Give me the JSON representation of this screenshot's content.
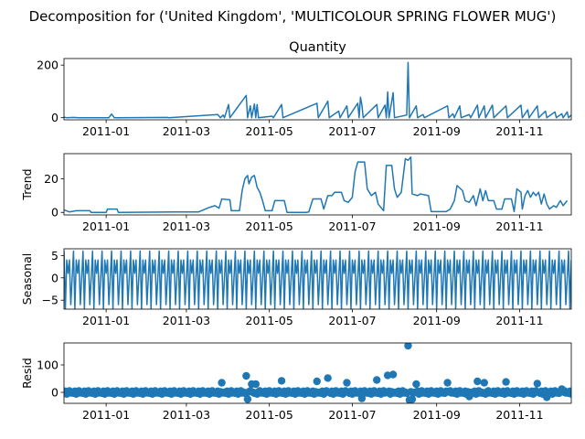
{
  "figure": {
    "suptitle": "Decomposition for ('United Kingdom', 'MULTICOLOUR SPRING FLOWER MUG')",
    "line_color": "#1f77b4"
  },
  "chart_data": [
    {
      "type": "line",
      "title": "Quantity",
      "ylabel": "",
      "xlim": [
        "2010-12-01",
        "2011-12-09"
      ],
      "ylim": [
        -8,
        225
      ],
      "yticks": [
        0,
        200
      ],
      "xticks": [
        "2011-01",
        "2011-03",
        "2011-05",
        "2011-07",
        "2011-09",
        "2011-11"
      ],
      "series": [
        {
          "points": [
            [
              "2010-12-01",
              2
            ],
            [
              "2010-12-03",
              0
            ],
            [
              "2010-12-08",
              1
            ],
            [
              "2010-12-12",
              0
            ],
            [
              "2011-01-03",
              0
            ],
            [
              "2011-01-05",
              14
            ],
            [
              "2011-01-07",
              0
            ],
            [
              "2011-02-15",
              1
            ],
            [
              "2011-02-16",
              0
            ],
            [
              "2011-03-24",
              12
            ],
            [
              "2011-03-26",
              0
            ],
            [
              "2011-03-28",
              10
            ],
            [
              "2011-03-29",
              0
            ],
            [
              "2011-04-01",
              50
            ],
            [
              "2011-04-02",
              0
            ],
            [
              "2011-04-14",
              85
            ],
            [
              "2011-04-15",
              0
            ],
            [
              "2011-04-17",
              45
            ],
            [
              "2011-04-18",
              0
            ],
            [
              "2011-04-20",
              52
            ],
            [
              "2011-04-21",
              0
            ],
            [
              "2011-04-22",
              50
            ],
            [
              "2011-04-23",
              0
            ],
            [
              "2011-05-03",
              6
            ],
            [
              "2011-05-04",
              0
            ],
            [
              "2011-05-10",
              50
            ],
            [
              "2011-05-11",
              0
            ],
            [
              "2011-06-05",
              55
            ],
            [
              "2011-06-06",
              0
            ],
            [
              "2011-06-13",
              63
            ],
            [
              "2011-06-14",
              0
            ],
            [
              "2011-06-21",
              25
            ],
            [
              "2011-06-22",
              0
            ],
            [
              "2011-06-27",
              45
            ],
            [
              "2011-06-28",
              0
            ],
            [
              "2011-07-05",
              55
            ],
            [
              "2011-07-06",
              0
            ],
            [
              "2011-07-07",
              78
            ],
            [
              "2011-07-08",
              50
            ],
            [
              "2011-07-09",
              0
            ],
            [
              "2011-07-19",
              50
            ],
            [
              "2011-07-20",
              0
            ],
            [
              "2011-07-25",
              48
            ],
            [
              "2011-07-26",
              0
            ],
            [
              "2011-07-27",
              98
            ],
            [
              "2011-07-28",
              0
            ],
            [
              "2011-07-31",
              95
            ],
            [
              "2011-08-01",
              0
            ],
            [
              "2011-08-10",
              10
            ],
            [
              "2011-08-11",
              210
            ],
            [
              "2011-08-12",
              0
            ],
            [
              "2011-08-17",
              45
            ],
            [
              "2011-08-18",
              0
            ],
            [
              "2011-08-22",
              12
            ],
            [
              "2011-08-23",
              0
            ],
            [
              "2011-09-09",
              45
            ],
            [
              "2011-09-10",
              0
            ],
            [
              "2011-09-13",
              15
            ],
            [
              "2011-09-14",
              0
            ],
            [
              "2011-09-18",
              45
            ],
            [
              "2011-09-19",
              0
            ],
            [
              "2011-09-25",
              12
            ],
            [
              "2011-09-26",
              0
            ],
            [
              "2011-10-01",
              48
            ],
            [
              "2011-10-02",
              0
            ],
            [
              "2011-10-06",
              45
            ],
            [
              "2011-10-07",
              0
            ],
            [
              "2011-10-12",
              48
            ],
            [
              "2011-10-13",
              0
            ],
            [
              "2011-10-22",
              45
            ],
            [
              "2011-10-23",
              0
            ],
            [
              "2011-11-02",
              48
            ],
            [
              "2011-11-03",
              0
            ],
            [
              "2011-11-07",
              30
            ],
            [
              "2011-11-08",
              0
            ],
            [
              "2011-11-14",
              45
            ],
            [
              "2011-11-15",
              0
            ],
            [
              "2011-11-20",
              25
            ],
            [
              "2011-11-21",
              0
            ],
            [
              "2011-11-27",
              22
            ],
            [
              "2011-11-28",
              0
            ],
            [
              "2011-12-02",
              15
            ],
            [
              "2011-12-03",
              0
            ],
            [
              "2011-12-06",
              22
            ],
            [
              "2011-12-07",
              0
            ],
            [
              "2011-12-09",
              10
            ]
          ]
        }
      ]
    },
    {
      "type": "line",
      "title": "",
      "ylabel": "Trend",
      "xlim": [
        "2010-12-01",
        "2011-12-09"
      ],
      "ylim": [
        -1.5,
        35
      ],
      "yticks": [
        0,
        20
      ],
      "xticks": [
        "2011-01",
        "2011-03",
        "2011-05",
        "2011-07",
        "2011-09",
        "2011-11"
      ],
      "series": [
        {
          "points": [
            [
              "2010-12-01",
              1.5
            ],
            [
              "2010-12-05",
              0.3
            ],
            [
              "2010-12-10",
              1
            ],
            [
              "2010-12-20",
              1
            ],
            [
              "2010-12-21",
              0
            ],
            [
              "2011-01-01",
              0
            ],
            [
              "2011-01-02",
              2
            ],
            [
              "2011-01-09",
              2
            ],
            [
              "2011-01-10",
              0
            ],
            [
              "2011-02-20",
              0.3
            ],
            [
              "2011-03-10",
              0.3
            ],
            [
              "2011-03-18",
              3
            ],
            [
              "2011-03-22",
              4
            ],
            [
              "2011-03-25",
              2.5
            ],
            [
              "2011-03-27",
              8
            ],
            [
              "2011-04-02",
              7.5
            ],
            [
              "2011-04-03",
              1
            ],
            [
              "2011-04-09",
              1
            ],
            [
              "2011-04-11",
              13
            ],
            [
              "2011-04-13",
              20
            ],
            [
              "2011-04-15",
              22
            ],
            [
              "2011-04-16",
              17
            ],
            [
              "2011-04-18",
              21
            ],
            [
              "2011-04-20",
              22
            ],
            [
              "2011-04-22",
              15
            ],
            [
              "2011-04-24",
              12
            ],
            [
              "2011-04-26",
              7
            ],
            [
              "2011-04-28",
              1
            ],
            [
              "2011-05-03",
              1
            ],
            [
              "2011-05-05",
              7
            ],
            [
              "2011-05-12",
              7
            ],
            [
              "2011-05-14",
              0
            ],
            [
              "2011-05-28",
              0
            ],
            [
              "2011-05-30",
              0.3
            ],
            [
              "2011-06-02",
              8
            ],
            [
              "2011-06-08",
              8
            ],
            [
              "2011-06-10",
              2
            ],
            [
              "2011-06-13",
              10
            ],
            [
              "2011-06-16",
              10
            ],
            [
              "2011-06-18",
              12
            ],
            [
              "2011-06-23",
              12
            ],
            [
              "2011-06-25",
              7
            ],
            [
              "2011-06-28",
              6
            ],
            [
              "2011-07-01",
              9
            ],
            [
              "2011-07-03",
              24
            ],
            [
              "2011-07-05",
              30
            ],
            [
              "2011-07-10",
              30
            ],
            [
              "2011-07-12",
              14
            ],
            [
              "2011-07-15",
              10
            ],
            [
              "2011-07-18",
              12
            ],
            [
              "2011-07-20",
              5
            ],
            [
              "2011-07-24",
              1
            ],
            [
              "2011-07-26",
              28
            ],
            [
              "2011-07-30",
              28
            ],
            [
              "2011-08-01",
              14
            ],
            [
              "2011-08-03",
              9
            ],
            [
              "2011-08-06",
              12
            ],
            [
              "2011-08-09",
              32
            ],
            [
              "2011-08-11",
              31
            ],
            [
              "2011-08-13",
              33
            ],
            [
              "2011-08-14",
              11
            ],
            [
              "2011-08-18",
              10
            ],
            [
              "2011-08-20",
              11
            ],
            [
              "2011-08-26",
              10
            ],
            [
              "2011-08-28",
              0.5
            ],
            [
              "2011-09-08",
              0.5
            ],
            [
              "2011-09-11",
              2
            ],
            [
              "2011-09-14",
              7
            ],
            [
              "2011-09-16",
              16
            ],
            [
              "2011-09-20",
              13
            ],
            [
              "2011-09-22",
              7
            ],
            [
              "2011-09-25",
              6
            ],
            [
              "2011-09-28",
              10
            ],
            [
              "2011-09-30",
              4
            ],
            [
              "2011-10-03",
              14
            ],
            [
              "2011-10-05",
              7
            ],
            [
              "2011-10-07",
              13
            ],
            [
              "2011-10-09",
              7
            ],
            [
              "2011-10-13",
              7
            ],
            [
              "2011-10-15",
              2
            ],
            [
              "2011-10-19",
              2
            ],
            [
              "2011-10-21",
              8
            ],
            [
              "2011-10-26",
              8
            ],
            [
              "2011-10-28",
              0.5
            ],
            [
              "2011-10-30",
              14
            ],
            [
              "2011-11-02",
              12
            ],
            [
              "2011-11-03",
              2
            ],
            [
              "2011-11-05",
              10
            ],
            [
              "2011-11-07",
              13
            ],
            [
              "2011-11-09",
              9
            ],
            [
              "2011-11-11",
              12
            ],
            [
              "2011-11-13",
              10
            ],
            [
              "2011-11-15",
              12
            ],
            [
              "2011-11-17",
              5
            ],
            [
              "2011-11-19",
              11
            ],
            [
              "2011-11-21",
              5
            ],
            [
              "2011-11-23",
              2
            ],
            [
              "2011-11-26",
              4
            ],
            [
              "2011-11-28",
              3
            ],
            [
              "2011-12-01",
              7
            ],
            [
              "2011-12-03",
              4
            ],
            [
              "2011-12-06",
              7
            ]
          ]
        }
      ]
    },
    {
      "type": "line",
      "title": "",
      "ylabel": "Seasonal",
      "xlim": [
        "2010-12-01",
        "2011-12-09"
      ],
      "ylim": [
        -7,
        6.5
      ],
      "yticks": [
        -5,
        0,
        5
      ],
      "xticks": [
        "2011-01",
        "2011-03",
        "2011-05",
        "2011-07",
        "2011-09",
        "2011-11"
      ],
      "series": [
        {
          "start": "2010-12-01",
          "period_pattern": [
            6,
            -7,
            4,
            1,
            4,
            -6,
            0
          ],
          "points": []
        }
      ]
    },
    {
      "type": "scatter",
      "title": "",
      "ylabel": "Resid",
      "xlim": [
        "2010-12-01",
        "2011-12-09"
      ],
      "ylim": [
        -40,
        180
      ],
      "yticks": [
        0,
        100
      ],
      "xticks": [
        "2011-01",
        "2011-03",
        "2011-05",
        "2011-07",
        "2011-09",
        "2011-11"
      ],
      "series": [
        {
          "start": "2010-12-01",
          "outliers": [
            [
              "2011-03-27",
              35
            ],
            [
              "2011-04-14",
              60
            ],
            [
              "2011-04-18",
              30
            ],
            [
              "2011-04-21",
              30
            ],
            [
              "2011-05-10",
              42
            ],
            [
              "2011-06-05",
              40
            ],
            [
              "2011-06-13",
              52
            ],
            [
              "2011-06-27",
              35
            ],
            [
              "2011-07-19",
              45
            ],
            [
              "2011-07-27",
              62
            ],
            [
              "2011-07-31",
              65
            ],
            [
              "2011-08-11",
              170
            ],
            [
              "2011-08-17",
              30
            ],
            [
              "2011-09-09",
              35
            ],
            [
              "2011-10-01",
              40
            ],
            [
              "2011-10-06",
              35
            ],
            [
              "2011-10-22",
              38
            ],
            [
              "2011-11-14",
              32
            ],
            [
              "2011-12-02",
              12
            ],
            [
              "2011-04-15",
              -25
            ],
            [
              "2011-07-08",
              -22
            ],
            [
              "2011-08-12",
              -28
            ],
            [
              "2011-08-14",
              -25
            ],
            [
              "2011-09-25",
              -15
            ],
            [
              "2011-11-21",
              -18
            ]
          ],
          "points": []
        }
      ]
    }
  ]
}
